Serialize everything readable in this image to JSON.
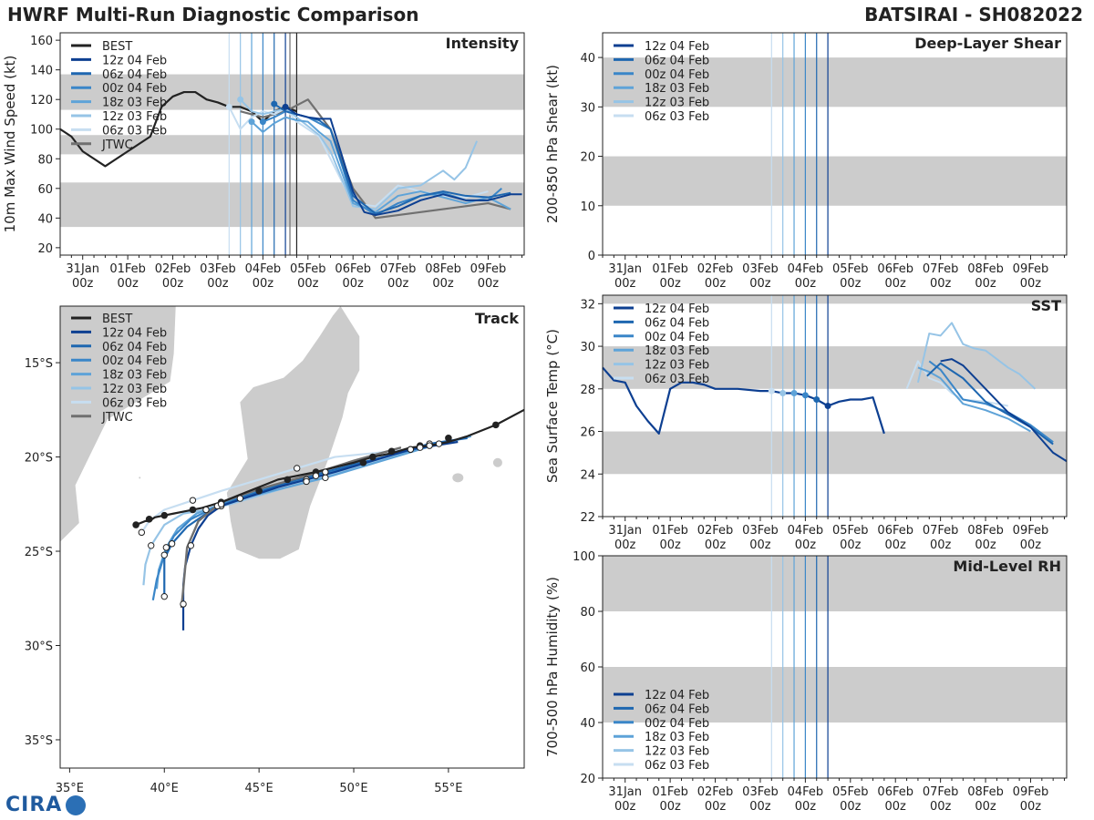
{
  "header": {
    "title": "HWRF Multi-Run Diagnostic Comparison",
    "storm": "BATSIRAI - SH082022"
  },
  "logo_text": "CIRA",
  "colors": {
    "best": "#222222",
    "jtwc": "#707070",
    "band": "#cccccc",
    "runs": [
      "#0d3f91",
      "#1e67b0",
      "#3a86c8",
      "#5ea3d8",
      "#96c4e6",
      "#c7def1"
    ]
  },
  "time_axis": {
    "range": [
      -0.5,
      9.8
    ],
    "ticks": [
      0,
      1,
      2,
      3,
      4,
      5,
      6,
      7,
      8,
      9
    ],
    "tick_labels": [
      [
        "31Jan",
        "00z"
      ],
      [
        "01Feb",
        "00z"
      ],
      [
        "02Feb",
        "00z"
      ],
      [
        "03Feb",
        "00z"
      ],
      [
        "04Feb",
        "00z"
      ],
      [
        "05Feb",
        "00z"
      ],
      [
        "06Feb",
        "00z"
      ],
      [
        "07Feb",
        "00z"
      ],
      [
        "08Feb",
        "00z"
      ],
      [
        "09Feb",
        "00z"
      ]
    ]
  },
  "run_labels": [
    "12z 04 Feb",
    "06z 04 Feb",
    "00z 04 Feb",
    "18z 03 Feb",
    "12z 03 Feb",
    "06z 03 Feb"
  ],
  "run_init": [
    4.5,
    4.25,
    4.0,
    3.75,
    3.5,
    3.25
  ],
  "chart_data": [
    {
      "id": "intensity",
      "type": "line",
      "title": "Intensity",
      "ylabel": "10m Max Wind Speed (kt)",
      "ylim": [
        15,
        165
      ],
      "yticks": [
        20,
        40,
        60,
        80,
        100,
        120,
        140,
        160
      ],
      "bands": [
        [
          34,
          64
        ],
        [
          83,
          96
        ],
        [
          113,
          137
        ]
      ],
      "legend": [
        "BEST",
        "12z 04 Feb",
        "06z 04 Feb",
        "00z 04 Feb",
        "18z 03 Feb",
        "12z 03 Feb",
        "06z 03 Feb",
        "JTWC"
      ],
      "best": {
        "x": [
          -0.5,
          -0.25,
          0,
          0.25,
          0.5,
          0.75,
          1,
          1.25,
          1.5,
          1.75,
          2,
          2.25,
          2.5,
          2.75,
          3,
          3.25,
          3.5,
          3.75,
          4,
          4.25,
          4.5,
          4.75
        ],
        "y": [
          100,
          95,
          85,
          80,
          75,
          80,
          85,
          90,
          95,
          115,
          122,
          125,
          125,
          120,
          118,
          115,
          115,
          112,
          105,
          112,
          115,
          112
        ]
      },
      "jtwc": {
        "x": [
          3.5,
          4,
          4.5,
          5,
          5.5,
          6,
          6.5,
          7,
          7.5,
          8,
          8.5,
          9,
          9.5
        ],
        "y": [
          112,
          108,
          112,
          120,
          100,
          60,
          40,
          42,
          44,
          46,
          48,
          50,
          46
        ]
      },
      "runs": [
        {
          "x": [
            4.5,
            4.75,
            5,
            5.25,
            5.5,
            6,
            6.25,
            6.5,
            7,
            7.5,
            8,
            8.5,
            9,
            9.5,
            9.75
          ],
          "y": [
            115,
            110,
            108,
            107,
            107,
            58,
            44,
            42,
            45,
            52,
            56,
            52,
            52,
            56,
            56
          ]
        },
        {
          "x": [
            4.25,
            4.5,
            4.75,
            5,
            5.25,
            5.5,
            6,
            6.5,
            7,
            7.5,
            8,
            8.5,
            9,
            9.5
          ],
          "y": [
            117,
            112,
            110,
            108,
            106,
            100,
            55,
            43,
            48,
            55,
            58,
            55,
            54,
            57
          ]
        },
        {
          "x": [
            4,
            4.25,
            4.5,
            4.75,
            5,
            5.25,
            5.5,
            6,
            6.5,
            7,
            7.5,
            8,
            8.5,
            9,
            9.3
          ],
          "y": [
            105,
            108,
            112,
            110,
            108,
            104,
            100,
            52,
            42,
            50,
            55,
            57,
            52,
            52,
            60
          ]
        },
        {
          "x": [
            3.75,
            4,
            4.25,
            4.5,
            4.75,
            5,
            5.25,
            5.5,
            6,
            6.5,
            7,
            7.5,
            8,
            8.5,
            9,
            9.5
          ],
          "y": [
            105,
            98,
            104,
            108,
            106,
            105,
            98,
            92,
            50,
            44,
            55,
            58,
            54,
            50,
            54,
            46
          ]
        },
        {
          "x": [
            3.5,
            3.75,
            4,
            4.25,
            4.5,
            4.75,
            5,
            5.25,
            5.5,
            6,
            6.5,
            7,
            7.5,
            8,
            8.25,
            8.5,
            8.75
          ],
          "y": [
            120,
            112,
            110,
            112,
            114,
            108,
            102,
            96,
            85,
            48,
            46,
            60,
            62,
            72,
            66,
            74,
            92
          ]
        },
        {
          "x": [
            3.25,
            3.5,
            3.75,
            4,
            4.25,
            4.5,
            4.75,
            5,
            5.25,
            5.5,
            6,
            6.5,
            7,
            7.5,
            8,
            8.5,
            9
          ],
          "y": [
            115,
            100,
            108,
            112,
            110,
            114,
            105,
            100,
            95,
            80,
            50,
            48,
            62,
            58,
            55,
            54,
            58
          ]
        }
      ]
    },
    {
      "id": "shear",
      "type": "line",
      "title": "Deep-Layer Shear",
      "ylabel": "200-850 hPa Shear (kt)",
      "ylim": [
        0,
        45
      ],
      "yticks": [
        0,
        10,
        20,
        30,
        40
      ],
      "bands": [
        [
          10,
          20
        ],
        [
          30,
          40
        ]
      ],
      "legend": [
        "12z 04 Feb",
        "06z 04 Feb",
        "00z 04 Feb",
        "18z 03 Feb",
        "12z 03 Feb",
        "06z 03 Feb"
      ]
    },
    {
      "id": "sst",
      "type": "line",
      "title": "SST",
      "ylabel": "Sea Surface Temp (°C)",
      "ylim": [
        22,
        32.4
      ],
      "yticks": [
        22,
        24,
        26,
        28,
        30,
        32
      ],
      "bands": [
        [
          24,
          26
        ],
        [
          28,
          30
        ],
        [
          32,
          32.4
        ]
      ],
      "legend": [
        "12z 04 Feb",
        "06z 04 Feb",
        "00z 04 Feb",
        "18z 03 Feb",
        "12z 03 Feb",
        "06z 03 Feb"
      ],
      "best": {
        "x": [
          -0.5,
          -0.25,
          0,
          0.25,
          0.5,
          0.75,
          1,
          1.25,
          1.5,
          1.75,
          2,
          2.5,
          3,
          3.25,
          3.5,
          3.75,
          4,
          4.25,
          4.5,
          4.75,
          5,
          5.25,
          5.5,
          5.75
        ],
        "y": [
          29,
          28.4,
          28.3,
          27.2,
          26.5,
          25.9,
          28.0,
          28.3,
          28.3,
          28.2,
          28.0,
          28.0,
          27.9,
          27.9,
          27.8,
          27.8,
          27.7,
          27.5,
          27.2,
          27.4,
          27.5,
          27.5,
          27.6,
          25.9
        ]
      },
      "runs": [
        {
          "x": [
            7,
            7.25,
            7.5,
            8,
            8.5,
            9,
            9.5,
            9.8
          ],
          "y": [
            29.3,
            29.4,
            29.1,
            28.0,
            26.9,
            26.2,
            25.0,
            24.6
          ]
        },
        {
          "x": [
            6.7,
            7,
            7.5,
            8,
            8.5,
            9,
            9.5
          ],
          "y": [
            28.6,
            29.2,
            28.5,
            27.4,
            26.8,
            26.2,
            25.4
          ]
        },
        {
          "x": [
            6.75,
            7,
            7.25,
            7.5,
            8,
            8.5,
            9,
            9.5
          ],
          "y": [
            29.3,
            28.9,
            28.2,
            27.5,
            27.3,
            26.9,
            26.3,
            25.5
          ]
        },
        {
          "x": [
            6.5,
            6.75,
            7,
            7.5,
            8,
            8.5,
            9
          ],
          "y": [
            29.0,
            28.8,
            28.5,
            27.3,
            27.0,
            26.6,
            26.0
          ]
        },
        {
          "x": [
            6.5,
            6.75,
            7,
            7.25,
            7.5,
            7.75,
            8,
            8.5,
            8.75,
            9.1
          ],
          "y": [
            28.3,
            30.6,
            30.5,
            31.1,
            30.1,
            29.9,
            29.8,
            29.0,
            28.7,
            28.0
          ]
        },
        {
          "x": [
            6.25,
            6.5,
            6.75,
            7,
            7.25,
            7.5,
            8,
            8.5
          ],
          "y": [
            28.0,
            29.3,
            28.5,
            28.3,
            27.8,
            27.5,
            27.4,
            27.2
          ]
        }
      ]
    },
    {
      "id": "rh",
      "type": "line",
      "title": "Mid-Level RH",
      "ylabel": "700-500 hPa Humidity (%)",
      "ylim": [
        20,
        100
      ],
      "yticks": [
        20,
        40,
        60,
        80,
        100
      ],
      "bands": [
        [
          40,
          60
        ],
        [
          80,
          100
        ]
      ],
      "legend": [
        "12z 04 Feb",
        "06z 04 Feb",
        "00z 04 Feb",
        "18z 03 Feb",
        "12z 03 Feb",
        "06z 03 Feb"
      ]
    },
    {
      "id": "track",
      "type": "line",
      "title": "Track",
      "xlim": [
        34.5,
        59
      ],
      "ylim": [
        -36.5,
        -12
      ],
      "xticks": [
        35,
        40,
        45,
        50,
        55
      ],
      "xtick_labels": [
        "35°E",
        "40°E",
        "45°E",
        "50°E",
        "55°E"
      ],
      "yticks": [
        -15,
        -20,
        -25,
        -30,
        -35
      ],
      "ytick_labels": [
        "15°S",
        "20°S",
        "25°S",
        "30°S",
        "35°S"
      ],
      "legend": [
        "BEST",
        "12z 04 Feb",
        "06z 04 Feb",
        "00z 04 Feb",
        "18z 03 Feb",
        "12z 03 Feb",
        "06z 03 Feb",
        "JTWC"
      ],
      "best": {
        "lon": [
          59,
          57.5,
          56,
          55,
          54,
          53,
          52,
          51,
          50,
          48,
          46,
          45,
          44,
          43,
          42,
          41,
          40.5,
          40,
          39.5,
          39.2,
          39,
          38.5
        ],
        "lat": [
          -17.5,
          -18.3,
          -18.9,
          -19.2,
          -19.4,
          -19.5,
          -19.8,
          -20.0,
          -20.3,
          -20.8,
          -21.2,
          -21.6,
          -22.0,
          -22.4,
          -22.7,
          -22.9,
          -23.0,
          -23.1,
          -23.2,
          -23.4,
          -23.4,
          -23.6
        ],
        "dots_lon": [
          57.5,
          55,
          53.5,
          52,
          51,
          50.5,
          48,
          46.5,
          45,
          43,
          41.5,
          40,
          39.2,
          38.5
        ],
        "dots_lat": [
          -18.3,
          -19.0,
          -19.4,
          -19.7,
          -20.0,
          -20.3,
          -20.8,
          -21.2,
          -21.8,
          -22.4,
          -22.8,
          -23.1,
          -23.3,
          -23.6
        ]
      },
      "jtwc": {
        "lon": [
          52.5,
          50,
          47.5,
          45,
          43,
          41.8,
          41.2,
          41,
          40.9
        ],
        "lat": [
          -19.5,
          -20.2,
          -21.0,
          -21.7,
          -22.4,
          -23.4,
          -24.8,
          -27,
          -28
        ]
      },
      "runs": [
        {
          "lon": [
            55.5,
            53,
            51,
            49,
            47.5,
            46,
            44.5,
            43,
            42.3,
            41.8,
            41.4,
            41.1,
            41,
            41,
            41,
            41
          ],
          "lat": [
            -19.2,
            -19.6,
            -20.2,
            -20.8,
            -21.2,
            -21.6,
            -22.1,
            -22.6,
            -23.1,
            -23.8,
            -24.7,
            -25.8,
            -26.8,
            -27.8,
            -28.6,
            -29.2
          ]
        },
        {
          "lon": [
            56,
            54,
            52,
            50,
            48.5,
            47,
            45.5,
            44,
            42.5,
            41.2,
            40.4,
            40,
            40,
            40
          ],
          "lat": [
            -19.0,
            -19.3,
            -19.9,
            -20.4,
            -20.8,
            -21.2,
            -21.7,
            -22.2,
            -22.8,
            -23.7,
            -24.6,
            -25.4,
            -26.5,
            -27.4
          ]
        },
        {
          "lon": [
            55.8,
            54,
            52,
            50,
            48,
            46,
            44,
            42.8,
            41.4,
            40.5,
            40.0,
            39.6,
            39.4
          ],
          "lat": [
            -19.0,
            -19.4,
            -19.9,
            -20.5,
            -21.0,
            -21.5,
            -22.1,
            -22.6,
            -23.3,
            -24.2,
            -25.2,
            -26.5,
            -27.6
          ]
        },
        {
          "lon": [
            56.2,
            54.5,
            52.5,
            50.5,
            48.5,
            46.5,
            44.5,
            43,
            41.7,
            40.7,
            40.1,
            39.7,
            39.6
          ],
          "lat": [
            -18.9,
            -19.3,
            -19.9,
            -20.5,
            -21.1,
            -21.6,
            -22.1,
            -22.5,
            -23.0,
            -23.8,
            -24.8,
            -26.0,
            -27.0
          ]
        },
        {
          "lon": [
            55.5,
            53.5,
            51.5,
            49.5,
            47.5,
            45.5,
            43.5,
            42.2,
            41.0,
            40.0,
            39.3,
            39.0,
            38.9
          ],
          "lat": [
            -19.1,
            -19.5,
            -20.1,
            -20.7,
            -21.3,
            -21.9,
            -22.5,
            -22.8,
            -23.0,
            -23.6,
            -24.7,
            -25.7,
            -26.8
          ]
        },
        {
          "lon": [
            55,
            53,
            51,
            49,
            47,
            45,
            43,
            41.5,
            40,
            39.2,
            38.8
          ],
          "lat": [
            -19.2,
            -19.6,
            -19.8,
            -20.0,
            -20.6,
            -21.2,
            -21.8,
            -22.3,
            -22.8,
            -23.4,
            -24.0
          ]
        }
      ]
    }
  ]
}
